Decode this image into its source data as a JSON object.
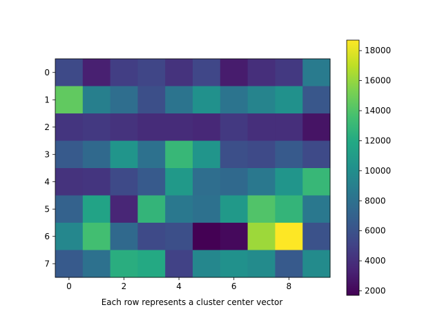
{
  "chart_data": {
    "type": "heatmap",
    "title": "",
    "xlabel": "Each row represents a cluster center vector",
    "ylabel": "",
    "rows": 8,
    "cols": 10,
    "x_ticks": [
      "0",
      "2",
      "4",
      "6",
      "8"
    ],
    "x_tick_values": [
      0,
      2,
      4,
      6,
      8
    ],
    "y_ticks": [
      "0",
      "1",
      "2",
      "3",
      "4",
      "5",
      "6",
      "7"
    ],
    "y_tick_values": [
      0,
      1,
      2,
      3,
      4,
      5,
      6,
      7
    ],
    "colormap": "viridis",
    "vmin": 1700,
    "vmax": 18700,
    "colorbar_ticks": [
      "2000",
      "4000",
      "6000",
      "8000",
      "10000",
      "12000",
      "14000",
      "16000",
      "18000"
    ],
    "colorbar_tick_values": [
      2000,
      4000,
      6000,
      8000,
      10000,
      12000,
      14000,
      16000,
      18000
    ],
    "values": [
      [
        5500,
        3200,
        4800,
        5200,
        4200,
        5300,
        3000,
        4000,
        4500,
        8700
      ],
      [
        14500,
        9000,
        7800,
        5800,
        8200,
        10200,
        8200,
        9300,
        10200,
        6300
      ],
      [
        4300,
        4500,
        4200,
        3800,
        3800,
        3600,
        4500,
        4000,
        4000,
        2600
      ],
      [
        6500,
        7500,
        10500,
        8000,
        13000,
        10500,
        5800,
        5500,
        6500,
        5500
      ],
      [
        4200,
        4300,
        5500,
        6500,
        10800,
        7800,
        7500,
        8500,
        10500,
        13000
      ],
      [
        7000,
        11500,
        3500,
        12800,
        8500,
        8000,
        10800,
        14000,
        12800,
        8500
      ],
      [
        9500,
        13500,
        7500,
        5500,
        5800,
        1700,
        2100,
        16200,
        18700,
        6000
      ],
      [
        6500,
        8000,
        12300,
        12000,
        5000,
        9500,
        10200,
        9800,
        6500,
        9800
      ]
    ]
  }
}
